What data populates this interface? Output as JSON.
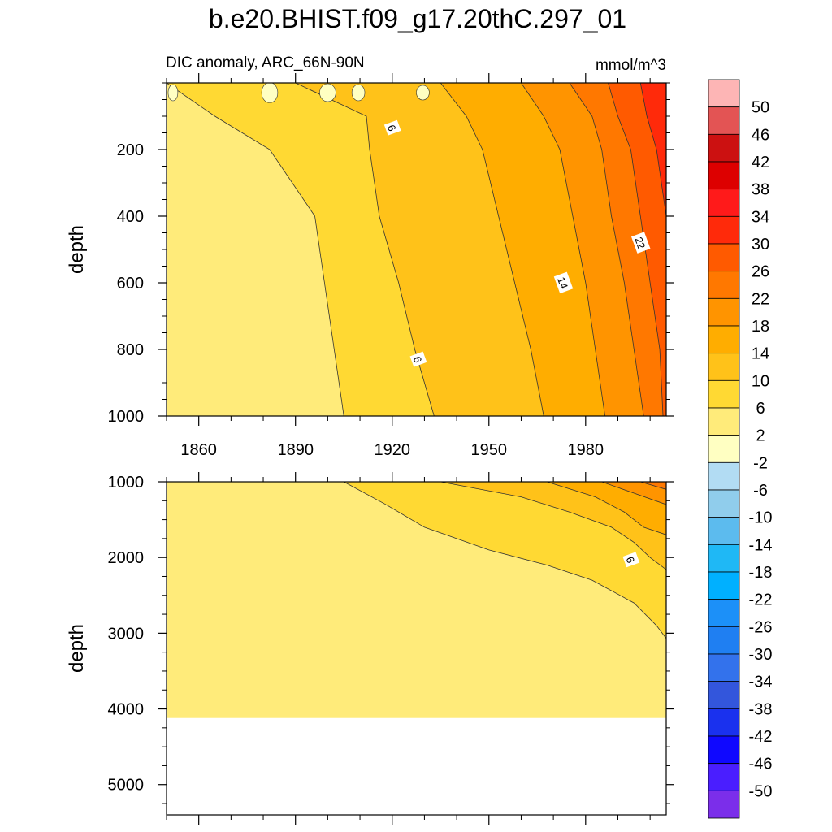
{
  "title": "b.e20.BHIST.f09_g17.20thC.297_01",
  "subtitle_left": "DIC anomaly, ARC_66N-90N",
  "subtitle_right": "mmol/m^3",
  "chart_data": {
    "type": "heatmap",
    "title": "b.e20.BHIST.f09_g17.20thC.297_01",
    "units": "mmol/m^3",
    "x_ticks": [
      "1860",
      "1890",
      "1920",
      "1950",
      "1980"
    ],
    "xlim": [
      1850,
      2005
    ],
    "panels": [
      {
        "name": "upper",
        "ylabel": "depth",
        "ylim": [
          0,
          1000
        ],
        "y_ticks": [
          200,
          400,
          600,
          800,
          1000
        ],
        "contour_labels": [
          {
            "text": "6",
            "x": 1920,
            "y": 135
          },
          {
            "text": "6",
            "x": 1928,
            "y": 830
          },
          {
            "text": "14",
            "x": 1973,
            "y": 600
          },
          {
            "text": "22",
            "x": 1997,
            "y": 480
          }
        ],
        "contour_bands": [
          {
            "level": -2,
            "x_at_depth": [
              [
                0,
                1850
              ],
              [
                100,
                1850
              ],
              [
                1000,
                1850
              ]
            ]
          },
          {
            "level": 2,
            "x_at_depth": [
              [
                0,
                1850
              ],
              [
                100,
                1865
              ],
              [
                200,
                1882
              ],
              [
                400,
                1896
              ],
              [
                600,
                1899
              ],
              [
                800,
                1902
              ],
              [
                1000,
                1905
              ]
            ]
          },
          {
            "level": 6,
            "x_at_depth": [
              [
                0,
                1890
              ],
              [
                100,
                1912
              ],
              [
                200,
                1913
              ],
              [
                400,
                1916
              ],
              [
                600,
                1922
              ],
              [
                800,
                1927
              ],
              [
                1000,
                1933
              ]
            ]
          },
          {
            "level": 10,
            "x_at_depth": [
              [
                0,
                1935
              ],
              [
                100,
                1943
              ],
              [
                200,
                1948
              ],
              [
                400,
                1953
              ],
              [
                600,
                1958
              ],
              [
                800,
                1963
              ],
              [
                1000,
                1967
              ]
            ]
          },
          {
            "level": 14,
            "x_at_depth": [
              [
                0,
                1960
              ],
              [
                100,
                1967
              ],
              [
                200,
                1972
              ],
              [
                400,
                1976
              ],
              [
                600,
                1980
              ],
              [
                800,
                1983
              ],
              [
                1000,
                1986
              ]
            ]
          },
          {
            "level": 18,
            "x_at_depth": [
              [
                0,
                1975
              ],
              [
                100,
                1982
              ],
              [
                200,
                1985
              ],
              [
                400,
                1988
              ],
              [
                600,
                1992
              ],
              [
                800,
                1995
              ],
              [
                1000,
                1998
              ]
            ]
          },
          {
            "level": 22,
            "x_at_depth": [
              [
                0,
                1987
              ],
              [
                100,
                1990
              ],
              [
                200,
                1994
              ],
              [
                400,
                1997
              ],
              [
                600,
                2000
              ],
              [
                800,
                2003
              ],
              [
                1000,
                2004
              ]
            ]
          },
          {
            "level": 26,
            "x_at_depth": [
              [
                0,
                1997
              ],
              [
                100,
                1999
              ],
              [
                200,
                2002
              ],
              [
                400,
                2005
              ],
              [
                1000,
                2005
              ]
            ]
          }
        ]
      },
      {
        "name": "lower",
        "ylabel": "depth",
        "ylim": [
          1000,
          5400
        ],
        "y_ticks": [
          1000,
          2000,
          3000,
          4000,
          5000
        ],
        "bottom_depth": 4120,
        "contour_labels": [
          {
            "text": "6",
            "x": 1994,
            "y": 2030
          }
        ],
        "contour_bands": [
          {
            "level": 2,
            "x_at_depth": [
              [
                1000,
                1905
              ],
              [
                1300,
                1918
              ],
              [
                1600,
                1930
              ],
              [
                1900,
                1950
              ],
              [
                2100,
                1968
              ],
              [
                2300,
                1982
              ],
              [
                2600,
                1995
              ],
              [
                2900,
                2002
              ],
              [
                3070,
                2005
              ]
            ]
          },
          {
            "level": 6,
            "x_at_depth": [
              [
                1000,
                1935
              ],
              [
                1200,
                1960
              ],
              [
                1400,
                1975
              ],
              [
                1600,
                1988
              ],
              [
                1800,
                1995
              ],
              [
                2000,
                2000
              ],
              [
                2160,
                2005
              ]
            ]
          },
          {
            "level": 10,
            "x_at_depth": [
              [
                1000,
                1968
              ],
              [
                1200,
                1983
              ],
              [
                1400,
                1992
              ],
              [
                1600,
                1998
              ],
              [
                1700,
                2005
              ]
            ]
          },
          {
            "level": 14,
            "x_at_depth": [
              [
                1000,
                1985
              ],
              [
                1150,
                1995
              ],
              [
                1300,
                2005
              ]
            ]
          },
          {
            "level": 18,
            "x_at_depth": [
              [
                1000,
                1997
              ],
              [
                1100,
                2005
              ]
            ]
          }
        ]
      }
    ],
    "colorbar": {
      "labels": [
        "50",
        "46",
        "42",
        "38",
        "34",
        "30",
        "26",
        "22",
        "18",
        "14",
        "10",
        "6",
        "2",
        "-2",
        "-6",
        "-10",
        "-14",
        "-18",
        "-22",
        "-26",
        "-30",
        "-34",
        "-38",
        "-42",
        "-46",
        "-50"
      ],
      "colors": [
        "#fdb5b5",
        "#e35454",
        "#cc1111",
        "#dd0000",
        "#ff1a1a",
        "#ff2a0a",
        "#ff5a00",
        "#ff7800",
        "#ff9400",
        "#ffad00",
        "#ffc219",
        "#ffd933",
        "#ffeb7a",
        "#ffffc2",
        "#b2dcf3",
        "#90cdec",
        "#5cbbee",
        "#1fb8f5",
        "#00b0ff",
        "#1c90f8",
        "#1f7ff2",
        "#3372ec",
        "#3356dc",
        "#1a31ee",
        "#0f08ff",
        "#4a1eff",
        "#7b2eea"
      ]
    }
  }
}
